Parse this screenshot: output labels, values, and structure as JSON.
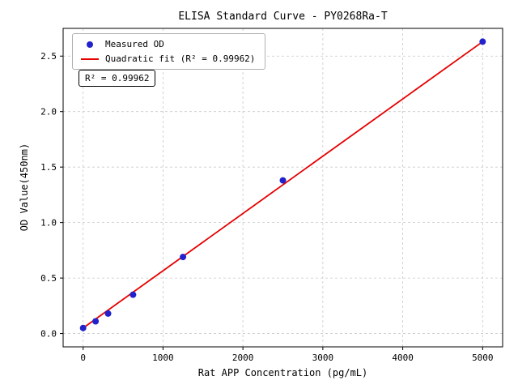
{
  "chart_data": {
    "type": "scatter",
    "title": "ELISA Standard Curve - PY0268Ra-T",
    "xlabel": "Rat APP Concentration (pg/mL)",
    "ylabel": "OD Value(450nm)",
    "xlim": [
      -250,
      5250
    ],
    "ylim": [
      -0.12,
      2.75
    ],
    "xticks": [
      0,
      1000,
      2000,
      3000,
      4000,
      5000
    ],
    "xtick_labels": [
      "0",
      "1000",
      "2000",
      "3000",
      "4000",
      "5000"
    ],
    "yticks": [
      0.0,
      0.5,
      1.0,
      1.5,
      2.0,
      2.5
    ],
    "ytick_labels": [
      "0.0",
      "0.5",
      "1.0",
      "1.5",
      "2.0",
      "2.5"
    ],
    "grid": true,
    "legend_position": "upper-left",
    "series": [
      {
        "name": "Measured OD",
        "type": "scatter",
        "color": "#2222cc",
        "x": [
          0,
          156.25,
          312.5,
          625,
          1250,
          2500,
          5000
        ],
        "y": [
          0.05,
          0.11,
          0.18,
          0.35,
          0.69,
          1.38,
          2.63
        ]
      },
      {
        "name": "Quadratic fit (R² = 0.99962)",
        "type": "line",
        "color": "#e60000",
        "x": [
          0,
          5000
        ],
        "y": [
          0.05,
          2.63
        ]
      }
    ],
    "annotation": "R² = 0.99962"
  }
}
